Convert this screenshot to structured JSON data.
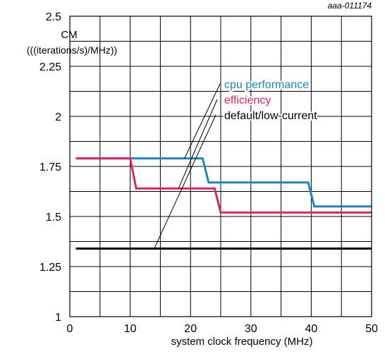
{
  "figure_id": "aaa-011174",
  "chart_data": {
    "type": "line",
    "title": "",
    "ylabel_lines": [
      "CM",
      "(((iterations/s)/MHz))"
    ],
    "xlabel": "system clock frequency (MHz)",
    "xlim": [
      0,
      50
    ],
    "ylim": [
      1,
      2.5
    ],
    "x_ticks": [
      0,
      10,
      20,
      30,
      40,
      50
    ],
    "y_ticks": [
      1,
      1.25,
      1.5,
      1.75,
      2,
      2.25,
      2.5
    ],
    "y_tick_labels": [
      "1",
      "1.25",
      "1.5",
      "1.75",
      "2",
      "2.25",
      "2.5"
    ],
    "grid": true,
    "series": [
      {
        "name": "cpu performance",
        "color": "#1b86c5",
        "x": [
          1,
          22,
          23,
          39.5,
          40.5,
          50
        ],
        "y": [
          1.79,
          1.79,
          1.67,
          1.67,
          1.55,
          1.55
        ]
      },
      {
        "name": "efficiency",
        "color": "#e0226c",
        "x": [
          1,
          10,
          11,
          24,
          25,
          50
        ],
        "y": [
          1.79,
          1.79,
          1.64,
          1.64,
          1.52,
          1.52
        ]
      },
      {
        "name": "default/low-current",
        "color": "#000000",
        "x": [
          1,
          50
        ],
        "y": [
          1.34,
          1.34
        ]
      }
    ],
    "legend": {
      "placement": "top-right",
      "leader_targets": [
        {
          "x": 19,
          "y": 1.79
        },
        {
          "x": 18,
          "y": 1.64
        },
        {
          "x": 14,
          "y": 1.34
        }
      ]
    }
  }
}
